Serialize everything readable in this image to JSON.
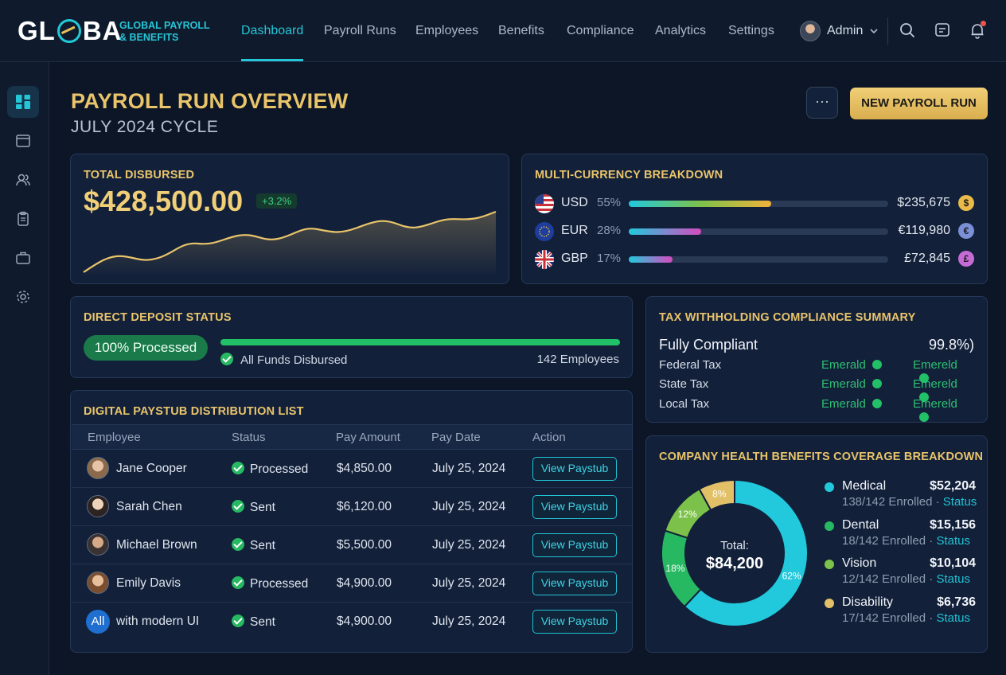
{
  "brand": {
    "name": "GLOBA",
    "tagline_1": "GLOBAL PAYROLL",
    "tagline_2": "& BENEFITS"
  },
  "nav": {
    "items": [
      "Dashboard",
      "Payroll Runs",
      "Employees",
      "Benefits",
      "Compliance",
      "Analytics",
      "Settings"
    ],
    "active": "Dashboard"
  },
  "user": {
    "name": "Admin"
  },
  "sidebar": {
    "icons": [
      "dashboard-icon",
      "wallet-icon",
      "users-icon",
      "clipboard-icon",
      "briefcase-icon",
      "gear-icon"
    ]
  },
  "header": {
    "title": "PAYROLL RUN OVERVIEW",
    "subtitle": "JULY 2024 CYCLE",
    "more_label": "···",
    "primary_label": "NEW PAYROLL RUN"
  },
  "total": {
    "title": "TOTAL DISBURSED",
    "amount": "$428,500.00",
    "delta": "+3.2%"
  },
  "currency": {
    "title": "MULTI-CURRENCY BREAKDOWN",
    "rows": [
      {
        "code": "USD",
        "pct": "55%",
        "share": 0.55,
        "amount": "$235,675",
        "symbol": "$",
        "coin": "#e9b949"
      },
      {
        "code": "EUR",
        "pct": "28%",
        "share": 0.28,
        "amount": "€119,980",
        "symbol": "€",
        "coin": "#7b8fd6"
      },
      {
        "code": "GBP",
        "pct": "17%",
        "share": 0.17,
        "amount": "£72,845",
        "symbol": "£",
        "coin": "#c66bd6"
      }
    ]
  },
  "deposit": {
    "title": "DIRECT DEPOSIT STATUS",
    "pill": "100% Processed",
    "progress": 1.0,
    "note": "All Funds Disbursed",
    "count": "142 Employees"
  },
  "tax": {
    "title": "TAX WITHHOLDING COMPLIANCE SUMMARY",
    "status": "Fully Compliant",
    "score": "99.8%)",
    "rows": [
      {
        "label": "Federal Tax",
        "a": "Emerald",
        "b": "Emereld"
      },
      {
        "label": "State Tax",
        "a": "Emerald",
        "b": "Emereld"
      },
      {
        "label": "Local Tax",
        "a": "Emerald",
        "b": "Emereld"
      }
    ]
  },
  "paystubs": {
    "title": "DIGITAL PAYSTUB DISTRIBUTION LIST",
    "columns": [
      "Employee",
      "Status",
      "Pay Amount",
      "Pay Date",
      "Action"
    ],
    "rows": [
      {
        "name": "Jane Cooper",
        "status": "Processed",
        "amount": "$4,850.00",
        "date": "July 25, 2024",
        "action": "View Paystub"
      },
      {
        "name": "Sarah Chen",
        "status": "Sent",
        "amount": "$6,120.00",
        "date": "July 25, 2024",
        "action": "View Paystub"
      },
      {
        "name": "Michael Brown",
        "status": "Sent",
        "amount": "$5,500.00",
        "date": "July 25, 2024",
        "action": "View Paystub"
      },
      {
        "name": "Emily Davis",
        "status": "Processed",
        "amount": "$4,900.00",
        "date": "July 25, 2024",
        "action": "View Paystub"
      },
      {
        "name": "with modern UI",
        "status": "Sent",
        "amount": "$4,900.00",
        "date": "July 25, 2024",
        "action": "View Paystub",
        "badge": "All"
      }
    ]
  },
  "benefits": {
    "title": "COMPANY HEALTH BENEFITS COVERAGE BREAKDOWN",
    "total_label": "Total:",
    "total_value": "$84,200",
    "slices": [
      {
        "name": "Medical",
        "amount": "$52,204",
        "enrolled": "138/142 Enrolled",
        "status": "Status",
        "pct": 62,
        "label": "62%",
        "color": "#22c9dc"
      },
      {
        "name": "Dental",
        "amount": "$15,156",
        "enrolled": "18/142 Enrolled",
        "status": "Status",
        "pct": 18,
        "label": "18%",
        "color": "#27b862"
      },
      {
        "name": "Vision",
        "amount": "$10,104",
        "enrolled": "12/142 Enrolled",
        "status": "Status",
        "pct": 12,
        "label": "12%",
        "color": "#7cc24a"
      },
      {
        "name": "Disability",
        "amount": "$6,736",
        "enrolled": "17/142 Enrolled",
        "status": "Status",
        "pct": 8,
        "label": "8%",
        "color": "#e2c068"
      }
    ]
  }
}
